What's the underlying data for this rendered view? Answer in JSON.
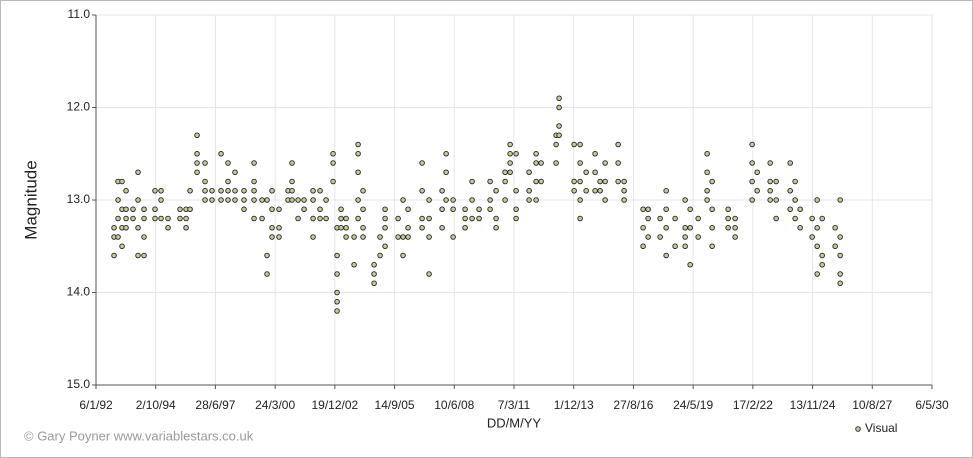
{
  "chart_data": {
    "type": "scatter",
    "y_label": "Magnitude",
    "x_label": "DD/M/YY",
    "credit": "© Gary Poyner www.variablestars.co.uk",
    "legend_position": "bottom-right",
    "grid": true,
    "invert_y": true,
    "xlim": [
      33609,
      47609
    ],
    "xticks": [
      {
        "value": 33609,
        "label": "6/1/92"
      },
      {
        "value": 34609,
        "label": "2/10/94"
      },
      {
        "value": 35609,
        "label": "28/6/97"
      },
      {
        "value": 36609,
        "label": "24/3/00"
      },
      {
        "value": 37609,
        "label": "19/12/02"
      },
      {
        "value": 38609,
        "label": "14/9/05"
      },
      {
        "value": 39609,
        "label": "10/6/08"
      },
      {
        "value": 40609,
        "label": "7/3/11"
      },
      {
        "value": 41609,
        "label": "1/12/13"
      },
      {
        "value": 42609,
        "label": "27/8/16"
      },
      {
        "value": 43609,
        "label": "24/5/19"
      },
      {
        "value": 44609,
        "label": "17/2/22"
      },
      {
        "value": 45609,
        "label": "13/11/24"
      },
      {
        "value": 46609,
        "label": "10/8/27"
      },
      {
        "value": 47609,
        "label": "6/5/30"
      }
    ],
    "ylim": [
      11,
      15
    ],
    "yticks": [
      {
        "value": 11,
        "label": "11.0"
      },
      {
        "value": 12,
        "label": "12.0"
      },
      {
        "value": 13,
        "label": "13.0"
      },
      {
        "value": 14,
        "label": "14.0"
      },
      {
        "value": 15,
        "label": "15.0"
      }
    ],
    "series": [
      {
        "name": "Visual",
        "color": "#c9cc96",
        "x": [
          33911,
          33911,
          33911,
          33978,
          33978,
          33978,
          33978,
          34045,
          34045,
          34045,
          34045,
          34112,
          34112,
          34112,
          34112,
          34229,
          34229,
          34313,
          34313,
          34313,
          34313,
          34413,
          34413,
          34413,
          34413,
          34597,
          34597,
          34597,
          34698,
          34698,
          34698,
          34815,
          34815,
          35016,
          35016,
          35117,
          35117,
          35117,
          35184,
          35184,
          35301,
          35301,
          35301,
          35301,
          35435,
          35435,
          35435,
          35435,
          35552,
          35552,
          35703,
          35703,
          35703,
          35820,
          35820,
          35820,
          35820,
          35937,
          35937,
          35937,
          36088,
          36088,
          36088,
          36256,
          36256,
          36256,
          36256,
          36256,
          36390,
          36390,
          36473,
          36473,
          36473,
          36557,
          36557,
          36557,
          36557,
          36674,
          36674,
          36674,
          36825,
          36825,
          36892,
          36892,
          36892,
          36892,
          36993,
          36993,
          37093,
          37093,
          37244,
          37244,
          37244,
          37244,
          37361,
          37361,
          37361,
          37462,
          37462,
          37579,
          37579,
          37579,
          37646,
          37646,
          37646,
          37646,
          37646,
          37646,
          37713,
          37713,
          37713,
          37797,
          37797,
          37797,
          37931,
          37931,
          37998,
          37998,
          37998,
          37998,
          37998,
          38081,
          38081,
          38081,
          38081,
          38266,
          38266,
          38266,
          38366,
          38366,
          38450,
          38450,
          38450,
          38450,
          38668,
          38668,
          38751,
          38751,
          38751,
          38835,
          38835,
          38835,
          39070,
          39070,
          39070,
          39070,
          39187,
          39187,
          39187,
          39187,
          39405,
          39405,
          39405,
          39472,
          39472,
          39472,
          39589,
          39589,
          39589,
          39790,
          39790,
          39790,
          39907,
          39907,
          39907,
          40024,
          40024,
          40209,
          40209,
          40209,
          40309,
          40309,
          40309,
          40460,
          40460,
          40460,
          40544,
          40544,
          40544,
          40544,
          40644,
          40644,
          40644,
          40644,
          40862,
          40862,
          40862,
          40979,
          40979,
          40979,
          40979,
          41063,
          41063,
          41314,
          41314,
          41314,
          41364,
          41364,
          41364,
          41364,
          41616,
          41616,
          41616,
          41716,
          41716,
          41716,
          41716,
          41716,
          41817,
          41817,
          41967,
          41967,
          41967,
          42051,
          42051,
          42135,
          42135,
          42135,
          42353,
          42353,
          42353,
          42453,
          42453,
          42453,
          42771,
          42771,
          42771,
          42855,
          42855,
          42855,
          43056,
          43056,
          43157,
          43157,
          43157,
          43157,
          43307,
          43307,
          43475,
          43475,
          43475,
          43475,
          43559,
          43559,
          43559,
          43693,
          43693,
          43843,
          43843,
          43843,
          43843,
          43927,
          43927,
          43927,
          43927,
          44195,
          44195,
          44195,
          44312,
          44312,
          44312,
          44597,
          44597,
          44597,
          44597,
          44681,
          44681,
          44899,
          44899,
          44899,
          44899,
          44999,
          44999,
          44999,
          45234,
          45234,
          45234,
          45317,
          45317,
          45317,
          45401,
          45401,
          45602,
          45602,
          45686,
          45686,
          45686,
          45686,
          45770,
          45770,
          45770,
          45987,
          45987,
          46071,
          46071,
          46071,
          46071,
          46071
        ],
        "values": [
          13.6,
          13.4,
          13.3,
          12.8,
          13.0,
          13.2,
          13.4,
          12.8,
          13.1,
          13.3,
          13.5,
          12.9,
          13.2,
          13.3,
          13.1,
          13.1,
          13.2,
          12.7,
          13.0,
          13.3,
          13.6,
          13.2,
          13.4,
          13.6,
          13.1,
          12.9,
          13.1,
          13.2,
          12.9,
          13.0,
          13.2,
          13.3,
          13.2,
          13.1,
          13.2,
          13.1,
          13.3,
          13.2,
          12.9,
          13.1,
          12.3,
          12.5,
          12.6,
          12.7,
          12.6,
          12.8,
          12.9,
          13.0,
          12.9,
          13.0,
          12.5,
          12.9,
          13.0,
          12.6,
          12.8,
          12.9,
          13.0,
          12.7,
          12.9,
          13.0,
          12.9,
          13.0,
          13.1,
          12.6,
          12.8,
          12.9,
          13.0,
          13.2,
          13.0,
          13.2,
          13.6,
          13.8,
          13.0,
          12.9,
          13.1,
          13.3,
          13.4,
          13.1,
          13.3,
          13.4,
          13.0,
          12.9,
          12.6,
          12.8,
          12.9,
          13.0,
          13.0,
          13.2,
          13.0,
          13.1,
          12.9,
          13.0,
          13.4,
          13.2,
          12.9,
          13.1,
          13.2,
          13.0,
          13.2,
          12.5,
          12.6,
          12.8,
          13.3,
          13.6,
          13.8,
          14.0,
          14.1,
          14.2,
          13.2,
          13.3,
          13.1,
          13.2,
          13.3,
          13.4,
          13.4,
          13.7,
          12.4,
          12.5,
          12.7,
          13.0,
          13.2,
          12.9,
          13.1,
          13.3,
          13.4,
          13.7,
          13.8,
          13.9,
          13.4,
          13.6,
          13.1,
          13.2,
          13.3,
          13.5,
          13.2,
          13.4,
          13.0,
          13.4,
          13.6,
          13.1,
          13.3,
          13.4,
          12.6,
          12.9,
          13.2,
          13.3,
          13.0,
          13.2,
          13.4,
          13.8,
          12.9,
          13.1,
          13.3,
          12.5,
          12.7,
          13.0,
          13.0,
          13.1,
          13.4,
          13.1,
          13.2,
          13.3,
          12.8,
          13.0,
          13.2,
          13.1,
          13.2,
          12.8,
          13.0,
          13.1,
          12.9,
          13.2,
          13.3,
          12.8,
          12.7,
          13.0,
          12.4,
          12.5,
          12.6,
          12.7,
          12.5,
          12.9,
          13.1,
          13.2,
          12.7,
          12.9,
          13.0,
          12.5,
          12.6,
          12.8,
          13.0,
          12.6,
          12.8,
          12.3,
          12.4,
          12.6,
          11.9,
          12.0,
          12.2,
          12.3,
          12.4,
          12.8,
          12.9,
          12.4,
          12.6,
          12.8,
          13.0,
          13.2,
          12.9,
          12.7,
          12.5,
          12.7,
          12.9,
          12.8,
          12.9,
          12.6,
          12.8,
          13.0,
          12.4,
          12.6,
          12.8,
          12.8,
          12.9,
          13.0,
          13.1,
          13.3,
          13.5,
          13.1,
          13.2,
          13.4,
          13.2,
          13.4,
          12.9,
          13.1,
          13.3,
          13.6,
          13.2,
          13.5,
          13.0,
          13.3,
          13.4,
          13.5,
          13.1,
          13.3,
          13.7,
          13.2,
          13.4,
          12.5,
          12.7,
          12.9,
          13.0,
          12.8,
          13.1,
          13.3,
          13.5,
          13.1,
          13.3,
          13.2,
          13.2,
          13.3,
          13.4,
          12.4,
          12.6,
          12.8,
          13.0,
          12.7,
          12.9,
          12.6,
          12.8,
          12.9,
          13.0,
          12.8,
          13.0,
          13.2,
          12.6,
          12.9,
          13.1,
          12.8,
          13.0,
          13.2,
          13.1,
          13.3,
          13.2,
          13.4,
          13.0,
          13.3,
          13.5,
          13.8,
          13.2,
          13.6,
          13.7,
          13.3,
          13.5,
          13.0,
          13.4,
          13.6,
          13.8,
          13.9
        ]
      }
    ]
  }
}
